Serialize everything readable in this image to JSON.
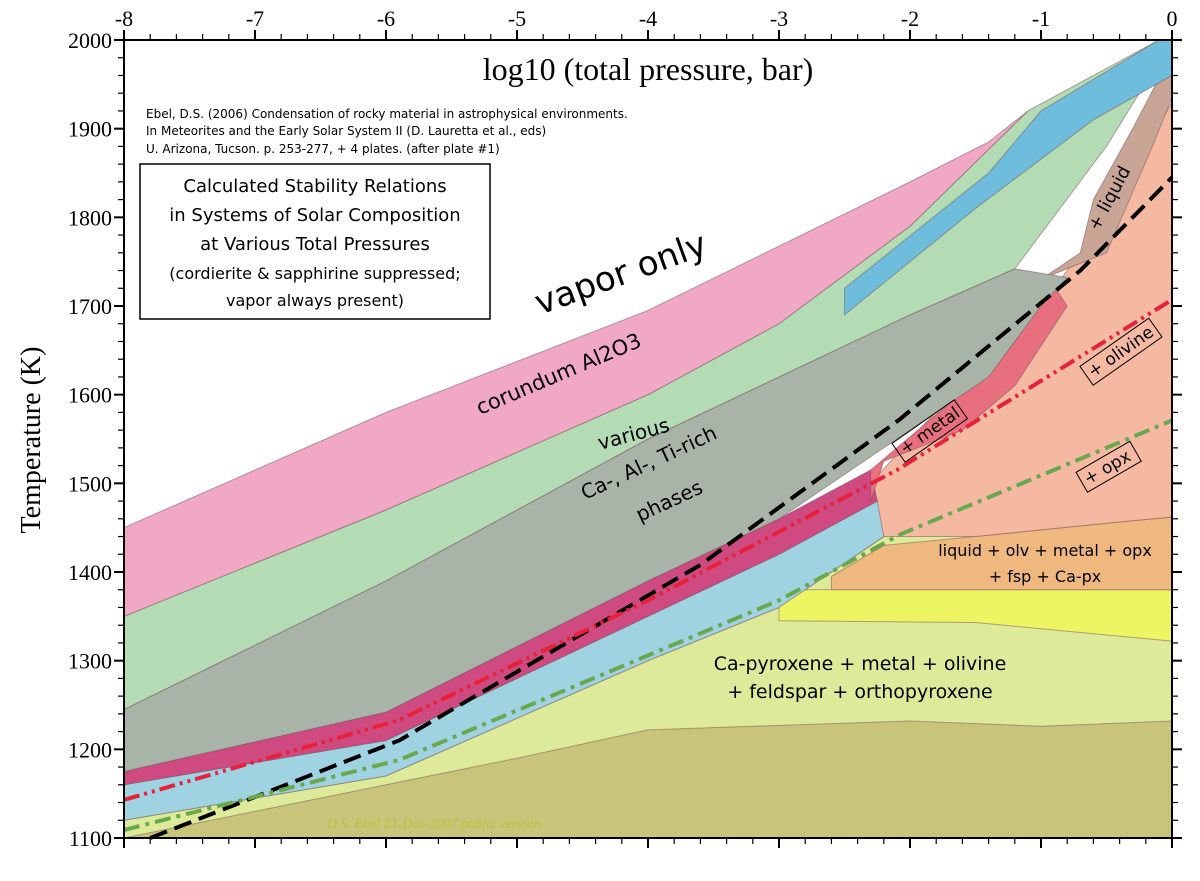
{
  "chart_data": {
    "type": "area",
    "title": "Calculated Stability Relations in Systems of Solar Composition at Various Total Pressures",
    "title_lines": [
      "Calculated Stability Relations",
      "in Systems of Solar Composition",
      "at Various Total Pressures",
      "(cordierite & sapphirine suppressed;",
      "vapor always present)"
    ],
    "citation_lines": [
      "Ebel, D.S. (2006) Condensation of rocky material in astrophysical environments.",
      "In Meteorites and the Early Solar System II (D. Lauretta et al., eds)",
      "U. Arizona, Tucson. p. 253-277, + 4 plates.  (after plate #1)"
    ],
    "xlabel": "log10 (total pressure, bar)",
    "ylabel": "Temperature (K)",
    "xlim": [
      -8,
      0
    ],
    "ylim": [
      1100,
      2000
    ],
    "x_ticks": [
      "-8",
      "-7",
      "-6",
      "-5",
      "-4",
      "-3",
      "-2",
      "-1",
      "0"
    ],
    "y_ticks": [
      "1100",
      "1200",
      "1300",
      "1400",
      "1500",
      "1600",
      "1700",
      "1800",
      "1900",
      "2000"
    ],
    "watermark": "D.S. Ebel  21-Dec-2007  public version",
    "labels": {
      "vapor": "vapor only",
      "corundum": "corundum Al2O3",
      "various": [
        "various",
        "Ca-, Al-, Ti-rich",
        "phases"
      ],
      "liquid": "+ liquid",
      "metal": "+ metal",
      "olivine": "+ olivine",
      "opx": "+ opx",
      "liquid_assemblage": [
        "liquid + olv + metal + opx",
        "+ fsp + Ca-px"
      ],
      "main_assemblage": [
        "Ca-pyroxene + metal + olivine",
        "+ feldspar + orthopyroxene"
      ]
    },
    "regions": [
      {
        "name": "cpx-metal-olivine-fsp-opx",
        "color": "#dcea9a",
        "points": [
          [
            -8,
            1100
          ],
          [
            -8,
            1120
          ],
          [
            -6,
            1170
          ],
          [
            -4,
            1300
          ],
          [
            -3,
            1360
          ],
          [
            -2.2,
            1440
          ],
          [
            -1,
            1460
          ],
          [
            0,
            1460
          ],
          [
            0,
            1100
          ]
        ]
      },
      {
        "name": "olive-lower",
        "color": "#c8c57a",
        "points": [
          [
            -8,
            1100
          ],
          [
            -7,
            1130
          ],
          [
            -5,
            1190
          ],
          [
            -4,
            1222
          ],
          [
            -2,
            1232
          ],
          [
            -1,
            1226
          ],
          [
            0,
            1232
          ],
          [
            0,
            1100
          ]
        ]
      },
      {
        "name": "yellow",
        "color": "#eef562",
        "points": [
          [
            -3,
            1380
          ],
          [
            -3,
            1345
          ],
          [
            -1.5,
            1343
          ],
          [
            0,
            1322
          ],
          [
            0,
            1380
          ]
        ]
      },
      {
        "name": "liquid-olv-metal-opx-fsp-cpx",
        "color": "#efb87e",
        "points": [
          [
            -2.6,
            1395
          ],
          [
            -2.2,
            1430
          ],
          [
            -1.5,
            1440
          ],
          [
            -0.5,
            1455
          ],
          [
            0,
            1462
          ],
          [
            0,
            1380
          ],
          [
            -2.6,
            1380
          ]
        ]
      },
      {
        "name": "salmon-olivine-opx",
        "color": "#f4b9a0",
        "points": [
          [
            -2.2,
            1440
          ],
          [
            -2.3,
            1500
          ],
          [
            -1.5,
            1630
          ],
          [
            -0.9,
            1720
          ],
          [
            -0.5,
            1800
          ],
          [
            0,
            1930
          ],
          [
            0,
            1462
          ],
          [
            -0.5,
            1455
          ],
          [
            -1.5,
            1440
          ]
        ]
      },
      {
        "name": "liquid",
        "color": "#c8a595",
        "points": [
          [
            -1.0,
            1730
          ],
          [
            -0.7,
            1760
          ],
          [
            -0.6,
            1820
          ],
          [
            -0.3,
            1900
          ],
          [
            0,
            1985
          ],
          [
            0,
            1935
          ],
          [
            -0.15,
            1880
          ],
          [
            -0.5,
            1760
          ]
        ]
      },
      {
        "name": "blue-band",
        "color": "#9fd3e2",
        "points": [
          [
            -8,
            1120
          ],
          [
            -6,
            1170
          ],
          [
            -4,
            1300
          ],
          [
            -3,
            1360
          ],
          [
            -2.2,
            1440
          ],
          [
            -2.25,
            1480
          ],
          [
            -3,
            1420
          ],
          [
            -4,
            1350
          ],
          [
            -6,
            1210
          ],
          [
            -8,
            1160
          ]
        ]
      },
      {
        "name": "magenta-band",
        "color": "#cf4a80",
        "points": [
          [
            -8,
            1160
          ],
          [
            -6,
            1210
          ],
          [
            -4,
            1350
          ],
          [
            -3,
            1420
          ],
          [
            -2.25,
            1480
          ],
          [
            -2.3,
            1515
          ],
          [
            -3,
            1460
          ],
          [
            -4,
            1390
          ],
          [
            -6,
            1242
          ],
          [
            -8,
            1175
          ]
        ]
      },
      {
        "name": "metal-red",
        "color": "#e8707e",
        "points": [
          [
            -2.3,
            1480
          ],
          [
            -2.2,
            1525
          ],
          [
            -1.6,
            1560
          ],
          [
            -1.2,
            1610
          ],
          [
            -0.8,
            1700
          ],
          [
            -0.9,
            1722
          ],
          [
            -1.3,
            1640
          ],
          [
            -1.7,
            1590
          ],
          [
            -2.3,
            1515
          ]
        ]
      },
      {
        "name": "gray-band",
        "color": "#a9b4a8",
        "points": [
          [
            -8,
            1175
          ],
          [
            -6,
            1242
          ],
          [
            -4,
            1390
          ],
          [
            -3,
            1460
          ],
          [
            -2,
            1560
          ],
          [
            -1.4,
            1620
          ],
          [
            -1,
            1700
          ],
          [
            -0.8,
            1732
          ],
          [
            -1.2,
            1742
          ],
          [
            -2,
            1690
          ],
          [
            -3,
            1620
          ],
          [
            -4,
            1550
          ],
          [
            -6,
            1390
          ],
          [
            -8,
            1245
          ]
        ]
      },
      {
        "name": "ca-al-ti-phases",
        "color": "#b3dcb4",
        "points": [
          [
            -8,
            1245
          ],
          [
            -6,
            1390
          ],
          [
            -4,
            1550
          ],
          [
            -3,
            1620
          ],
          [
            -2,
            1690
          ],
          [
            -1.2,
            1742
          ],
          [
            -0.5,
            1880
          ],
          [
            0,
            2000
          ],
          [
            -0.1,
            2000
          ],
          [
            -1.1,
            1920
          ],
          [
            -2,
            1790
          ],
          [
            -3,
            1680
          ],
          [
            -4,
            1600
          ],
          [
            -6,
            1470
          ],
          [
            -8,
            1350
          ]
        ]
      },
      {
        "name": "blue-top",
        "color": "#6fbddc",
        "points": [
          [
            -2.5,
            1720
          ],
          [
            -1.4,
            1850
          ],
          [
            -1,
            1920
          ],
          [
            -0.1,
            2000
          ],
          [
            0,
            2000
          ],
          [
            0,
            1960
          ],
          [
            -0.6,
            1910
          ],
          [
            -1.5,
            1810
          ],
          [
            -2.5,
            1690
          ]
        ]
      },
      {
        "name": "corundum",
        "color": "#f1a8c4",
        "points": [
          [
            -8,
            1350
          ],
          [
            -6,
            1470
          ],
          [
            -4,
            1600
          ],
          [
            -3,
            1680
          ],
          [
            -2,
            1790
          ],
          [
            -1.1,
            1920
          ],
          [
            -1.4,
            1885
          ],
          [
            -2,
            1840
          ],
          [
            -4,
            1695
          ],
          [
            -6,
            1580
          ],
          [
            -8,
            1450
          ]
        ]
      }
    ],
    "series": [
      {
        "name": "metal condensation (dashed)",
        "color": "#000000",
        "dash": "dashed",
        "x": [
          -7.8,
          -5.9,
          -3.6,
          -2.08,
          -0.7,
          0
        ],
        "y": [
          1100,
          1210,
          1408,
          1572,
          1740,
          1845
        ]
      },
      {
        "name": "olivine (dash-dot-dot)",
        "color": "#e8203a",
        "dash": "dash-dot-dot",
        "x": [
          -8,
          -5.9,
          -4,
          -2.1,
          0
        ],
        "y": [
          1143,
          1233,
          1368,
          1515,
          1707
        ]
      },
      {
        "name": "opx (dash-dot)",
        "color": "#6aa84f",
        "dash": "dash-dot",
        "x": [
          -8,
          -5.9,
          -3,
          -2.08,
          0
        ],
        "y": [
          1109,
          1188,
          1368,
          1442,
          1571
        ]
      }
    ]
  }
}
